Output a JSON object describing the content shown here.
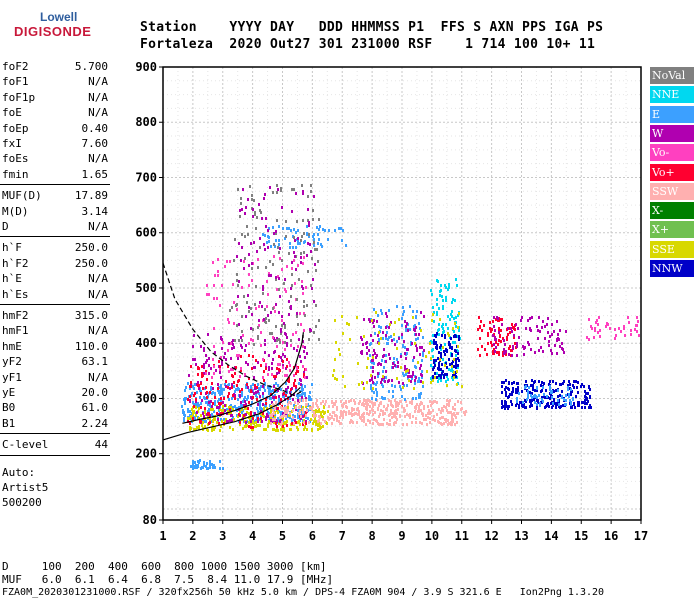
{
  "logo": {
    "line1": "Lowell",
    "line2": "DIGISONDE"
  },
  "header": {
    "line1": "Station    YYYY DAY   DDD HHMMSS P1  FFS S AXN PPS IGA PS",
    "line2": "Fortaleza  2020 Out27 301 231000 RSF    1 714 100 10+ 11"
  },
  "params": {
    "group1": [
      {
        "k": "foF2",
        "v": "5.700"
      },
      {
        "k": "foF1",
        "v": "N/A"
      },
      {
        "k": "foF1p",
        "v": "N/A"
      },
      {
        "k": "foE",
        "v": "N/A"
      },
      {
        "k": "foEp",
        "v": "0.40"
      },
      {
        "k": "fxI",
        "v": "7.60"
      },
      {
        "k": "foEs",
        "v": "N/A"
      },
      {
        "k": "fmin",
        "v": "1.65"
      }
    ],
    "group2": [
      {
        "k": "MUF(D)",
        "v": "17.89"
      },
      {
        "k": "M(D)",
        "v": "3.14"
      },
      {
        "k": "D",
        "v": "N/A"
      }
    ],
    "group3": [
      {
        "k": "h`F",
        "v": "250.0"
      },
      {
        "k": "h`F2",
        "v": "250.0"
      },
      {
        "k": "h`E",
        "v": "N/A"
      },
      {
        "k": "h`Es",
        "v": "N/A"
      }
    ],
    "group4": [
      {
        "k": "hmF2",
        "v": "315.0"
      },
      {
        "k": "hmF1",
        "v": "N/A"
      },
      {
        "k": "hmE",
        "v": "110.0"
      },
      {
        "k": "yF2",
        "v": "63.1"
      },
      {
        "k": "yF1",
        "v": "N/A"
      },
      {
        "k": "yE",
        "v": "20.0"
      },
      {
        "k": "B0",
        "v": "61.0"
      },
      {
        "k": "B1",
        "v": "2.24"
      }
    ],
    "group5": [
      {
        "k": "C-level",
        "v": "44"
      }
    ],
    "auto": [
      "Auto:",
      "Artist5",
      "500200"
    ]
  },
  "legend": [
    {
      "label": "NoVal",
      "color": "#808080"
    },
    {
      "label": "NNE",
      "color": "#00d8f0"
    },
    {
      "label": "E",
      "color": "#3ca0ff"
    },
    {
      "label": "W",
      "color": "#b000b0"
    },
    {
      "label": "Vo-",
      "color": "#ff40c0"
    },
    {
      "label": "Vo+",
      "color": "#ff0030"
    },
    {
      "label": "SSW",
      "color": "#ffb0b0"
    },
    {
      "label": "X-",
      "color": "#008000"
    },
    {
      "label": "X+",
      "color": "#70c050"
    },
    {
      "label": "SSE",
      "color": "#d8d800"
    },
    {
      "label": "NNW",
      "color": "#0000c8"
    }
  ],
  "footer": {
    "d_row": "D     100  200  400  600  800 1000 1500 3000 [km]",
    "muf_row": "MUF   6.0  6.1  6.4  6.8  7.5  8.4 11.0 17.9 [MHz]",
    "file_row": "FZA0M_2020301231000.RSF / 320fx256h 50 kHz 5.0 km / DPS-4 FZA0M 904 / 3.9 S 321.6 E   Ion2Png 1.3.20"
  },
  "chart_data": {
    "type": "scatter",
    "x_range": [
      1,
      17
    ],
    "y_range": [
      80,
      900
    ],
    "x_ticks": [
      "1",
      "2",
      "3",
      "4",
      "5",
      "6",
      "7",
      "8",
      "9",
      "10",
      "11",
      "12",
      "13",
      "14",
      "15",
      "16",
      "17"
    ],
    "y_ticks": [
      "80",
      "200",
      "300",
      "400",
      "500",
      "600",
      "700",
      "800",
      "900"
    ],
    "grid": true,
    "legend_position": "right",
    "clusters": [
      {
        "color": "#3ca0ff",
        "x": [
          1.6,
          6.0
        ],
        "y": [
          260,
          330
        ],
        "n": 420
      },
      {
        "color": "#d8d800",
        "x": [
          1.8,
          6.5
        ],
        "y": [
          245,
          290
        ],
        "n": 260
      },
      {
        "color": "#b000b0",
        "x": [
          1.8,
          5.8
        ],
        "y": [
          260,
          420
        ],
        "n": 220
      },
      {
        "color": "#ff0030",
        "x": [
          1.8,
          5.8
        ],
        "y": [
          250,
          380
        ],
        "n": 160
      },
      {
        "color": "#ff40c0",
        "x": [
          2.4,
          5.8
        ],
        "y": [
          340,
          560
        ],
        "n": 120
      },
      {
        "color": "#ffb0b0",
        "x": [
          4.5,
          10.8
        ],
        "y": [
          255,
          300
        ],
        "n": 300
      },
      {
        "color": "#ffb0b0",
        "x": [
          6.5,
          11.2
        ],
        "y": [
          270,
          300
        ],
        "n": 120
      },
      {
        "color": "#3ca0ff",
        "x": [
          4.3,
          7.1
        ],
        "y": [
          575,
          615
        ],
        "n": 60
      },
      {
        "color": "#808080",
        "x": [
          3.2,
          6.2
        ],
        "y": [
          400,
          690
        ],
        "n": 140
      },
      {
        "color": "#b000b0",
        "x": [
          3.4,
          6.1
        ],
        "y": [
          420,
          690
        ],
        "n": 100
      },
      {
        "color": "#3ca0ff",
        "x": [
          1.9,
          3.0
        ],
        "y": [
          175,
          190
        ],
        "n": 40
      },
      {
        "color": "#3ca0ff",
        "x": [
          7.9,
          9.7
        ],
        "y": [
          300,
          470
        ],
        "n": 140
      },
      {
        "color": "#b000b0",
        "x": [
          7.6,
          9.7
        ],
        "y": [
          330,
          460
        ],
        "n": 120
      },
      {
        "color": "#00d8f0",
        "x": [
          9.9,
          10.9
        ],
        "y": [
          330,
          520
        ],
        "n": 120
      },
      {
        "color": "#0000c8",
        "x": [
          10.0,
          10.9
        ],
        "y": [
          340,
          420
        ],
        "n": 100
      },
      {
        "color": "#ff0030",
        "x": [
          11.5,
          12.8
        ],
        "y": [
          380,
          450
        ],
        "n": 70
      },
      {
        "color": "#b000b0",
        "x": [
          12.0,
          14.5
        ],
        "y": [
          380,
          450
        ],
        "n": 90
      },
      {
        "color": "#0000c8",
        "x": [
          12.3,
          15.3
        ],
        "y": [
          285,
          335
        ],
        "n": 230
      },
      {
        "color": "#3ca0ff",
        "x": [
          12.8,
          14.8
        ],
        "y": [
          290,
          325
        ],
        "n": 60
      },
      {
        "color": "#ff40c0",
        "x": [
          15.0,
          17.0
        ],
        "y": [
          410,
          450
        ],
        "n": 40
      },
      {
        "color": "#d8d800",
        "x": [
          6.6,
          11.0
        ],
        "y": [
          320,
          460
        ],
        "n": 80
      }
    ],
    "profile_dashed": [
      [
        1.0,
        545
      ],
      [
        1.4,
        480
      ],
      [
        2.0,
        425
      ],
      [
        2.6,
        385
      ],
      [
        3.2,
        360
      ],
      [
        3.8,
        340
      ],
      [
        4.4,
        325
      ],
      [
        5.0,
        315
      ],
      [
        5.4,
        305
      ],
      [
        5.7,
        315
      ]
    ],
    "profile_solid": [
      [
        1.65,
        255
      ],
      [
        2.2,
        262
      ],
      [
        2.8,
        268
      ],
      [
        3.4,
        278
      ],
      [
        4.0,
        290
      ],
      [
        4.6,
        305
      ],
      [
        5.1,
        330
      ],
      [
        5.4,
        355
      ],
      [
        5.65,
        400
      ],
      [
        5.7,
        420
      ]
    ],
    "trace_solid": [
      [
        1.0,
        225
      ],
      [
        1.8,
        238
      ],
      [
        2.6,
        248
      ],
      [
        3.4,
        258
      ],
      [
        4.2,
        272
      ],
      [
        4.8,
        288
      ],
      [
        5.3,
        305
      ],
      [
        5.6,
        320
      ]
    ]
  }
}
